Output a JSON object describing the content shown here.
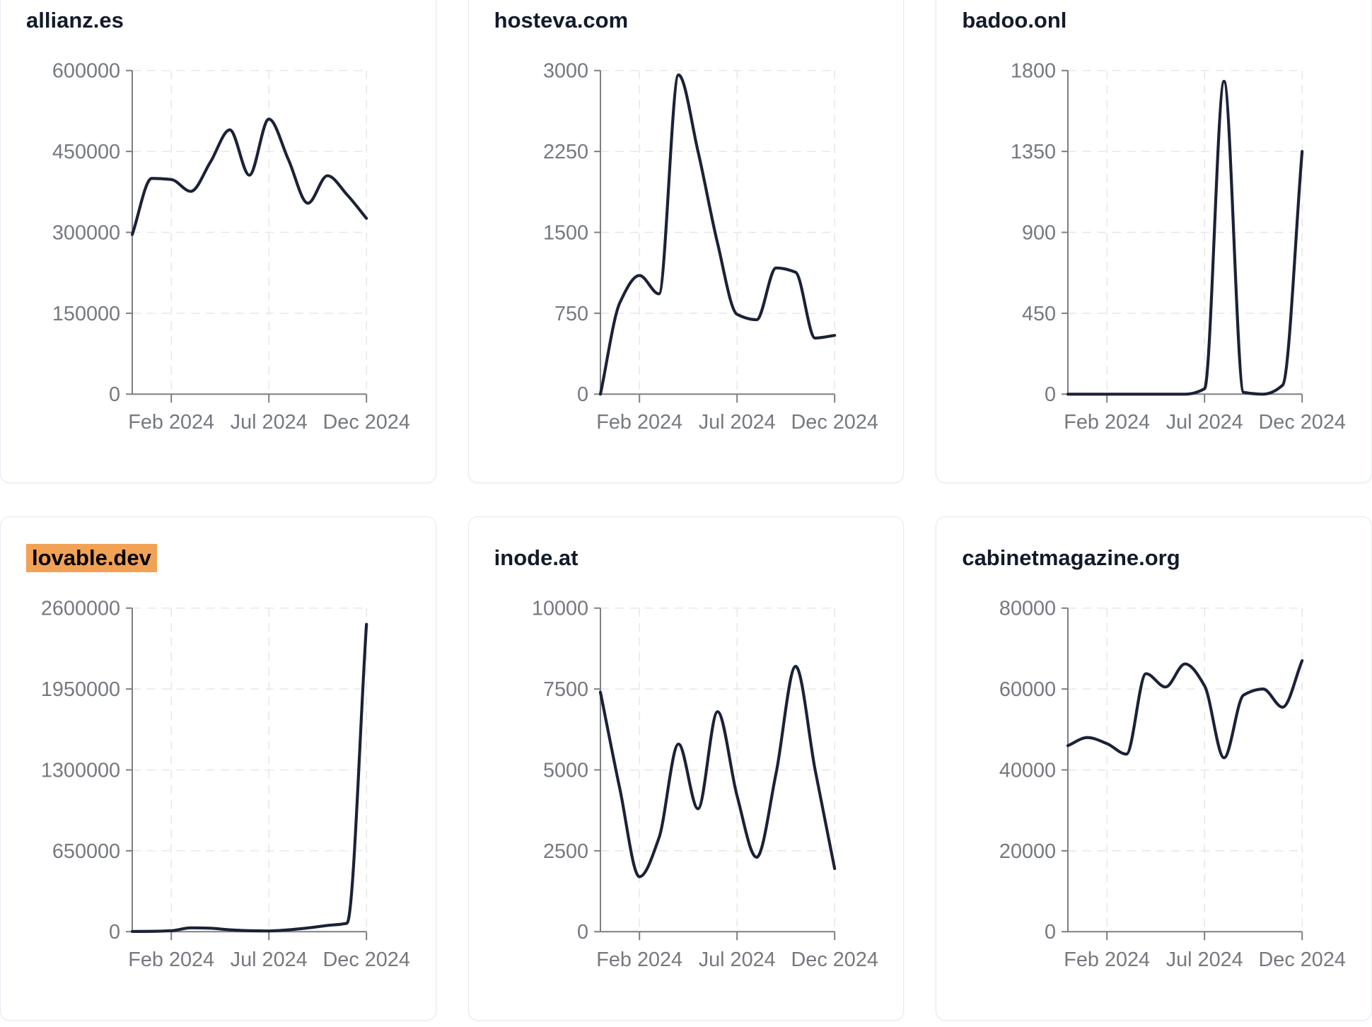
{
  "style": {
    "page_background": "#ffffff",
    "card_background": "#ffffff",
    "card_border_color": "#e6eaf2",
    "title_color": "#131a2b",
    "highlight_color": "#f2a254",
    "line_color": "#1b2237",
    "axis_color": "#7b7f84",
    "tick_label_color": "#75797f",
    "grid_color": "#e8e8e8"
  },
  "cards": [
    {
      "title": "allianz.es",
      "highlighted": false
    },
    {
      "title": "hosteva.com",
      "highlighted": false
    },
    {
      "title": "badoo.onl",
      "highlighted": false
    },
    {
      "title": "lovable.dev",
      "highlighted": true
    },
    {
      "title": "inode.at",
      "highlighted": false
    },
    {
      "title": "cabinetmagazine.org",
      "highlighted": false
    }
  ],
  "chart_data": [
    {
      "type": "line",
      "title": "allianz.es",
      "x": [
        "2023-12",
        "2024-01",
        "2024-02",
        "2024-03",
        "2024-04",
        "2024-05",
        "2024-06",
        "2024-07",
        "2024-08",
        "2024-09",
        "2024-10",
        "2024-11",
        "2024-12"
      ],
      "values": [
        296000,
        400000,
        398000,
        376000,
        430000,
        490000,
        406000,
        510000,
        435000,
        354000,
        405000,
        370000,
        326000
      ],
      "ylim": [
        0,
        600000
      ],
      "yticks": [
        0,
        150000,
        300000,
        450000,
        600000
      ],
      "xticks": [
        {
          "label": "Feb 2024",
          "index": 2
        },
        {
          "label": "Jul 2024",
          "index": 7
        },
        {
          "label": "Dec 2024",
          "index": 12
        }
      ],
      "grid": "dashed"
    },
    {
      "type": "line",
      "title": "hosteva.com",
      "x": [
        "2023-12",
        "2024-01",
        "2024-02",
        "2024-03",
        "2024-04",
        "2024-05",
        "2024-06",
        "2024-07",
        "2024-08",
        "2024-09",
        "2024-10",
        "2024-11",
        "2024-12"
      ],
      "values": [
        0,
        850,
        1100,
        930,
        2960,
        2250,
        1400,
        740,
        690,
        1170,
        1130,
        520,
        545
      ],
      "ylim": [
        0,
        3000
      ],
      "yticks": [
        0,
        750,
        1500,
        2250,
        3000
      ],
      "xticks": [
        {
          "label": "Feb 2024",
          "index": 2
        },
        {
          "label": "Jul 2024",
          "index": 7
        },
        {
          "label": "Dec 2024",
          "index": 12
        }
      ],
      "grid": "dashed"
    },
    {
      "type": "line",
      "title": "badoo.onl",
      "x": [
        "2023-12",
        "2024-01",
        "2024-02",
        "2024-03",
        "2024-04",
        "2024-05",
        "2024-06",
        "2024-07",
        "2024-08",
        "2024-09",
        "2024-10",
        "2024-11",
        "2024-12"
      ],
      "values": [
        0,
        0,
        0,
        0,
        0,
        0,
        0,
        30,
        1740,
        10,
        0,
        50,
        1350
      ],
      "ylim": [
        0,
        1800
      ],
      "yticks": [
        0,
        450,
        900,
        1350,
        1800
      ],
      "xticks": [
        {
          "label": "Feb 2024",
          "index": 2
        },
        {
          "label": "Jul 2024",
          "index": 7
        },
        {
          "label": "Dec 2024",
          "index": 12
        }
      ],
      "grid": "dashed"
    },
    {
      "type": "line",
      "title": "lovable.dev",
      "x": [
        "2023-12",
        "2024-01",
        "2024-02",
        "2024-03",
        "2024-04",
        "2024-05",
        "2024-06",
        "2024-07",
        "2024-08",
        "2024-09",
        "2024-10",
        "2024-11",
        "2024-12"
      ],
      "values": [
        2000,
        3000,
        8000,
        31000,
        28000,
        15000,
        8000,
        6000,
        15000,
        30000,
        50000,
        68000,
        2470000
      ],
      "ylim": [
        0,
        2600000
      ],
      "yticks": [
        0,
        650000,
        1300000,
        1950000,
        2600000
      ],
      "xticks": [
        {
          "label": "Feb 2024",
          "index": 2
        },
        {
          "label": "Jul 2024",
          "index": 7
        },
        {
          "label": "Dec 2024",
          "index": 12
        }
      ],
      "grid": "dashed"
    },
    {
      "type": "line",
      "title": "inode.at",
      "x": [
        "2023-12",
        "2024-01",
        "2024-02",
        "2024-03",
        "2024-04",
        "2024-05",
        "2024-06",
        "2024-07",
        "2024-08",
        "2024-09",
        "2024-10",
        "2024-11",
        "2024-12"
      ],
      "values": [
        7400,
        4400,
        1700,
        2900,
        5800,
        3800,
        6800,
        4200,
        2300,
        4900,
        8200,
        5000,
        1950
      ],
      "ylim": [
        0,
        10000
      ],
      "yticks": [
        0,
        2500,
        5000,
        7500,
        10000
      ],
      "xticks": [
        {
          "label": "Feb 2024",
          "index": 2
        },
        {
          "label": "Jul 2024",
          "index": 7
        },
        {
          "label": "Dec 2024",
          "index": 12
        }
      ],
      "grid": "dashed"
    },
    {
      "type": "line",
      "title": "cabinetmagazine.org",
      "x": [
        "2023-12",
        "2024-01",
        "2024-02",
        "2024-03",
        "2024-04",
        "2024-05",
        "2024-06",
        "2024-07",
        "2024-08",
        "2024-09",
        "2024-10",
        "2024-11",
        "2024-12"
      ],
      "values": [
        46000,
        48000,
        46500,
        43900,
        63800,
        60500,
        66200,
        60800,
        43000,
        58500,
        60000,
        55500,
        67000
      ],
      "ylim": [
        0,
        80000
      ],
      "yticks": [
        0,
        20000,
        40000,
        60000,
        80000
      ],
      "xticks": [
        {
          "label": "Feb 2024",
          "index": 2
        },
        {
          "label": "Jul 2024",
          "index": 7
        },
        {
          "label": "Dec 2024",
          "index": 12
        }
      ],
      "grid": "dashed"
    }
  ]
}
